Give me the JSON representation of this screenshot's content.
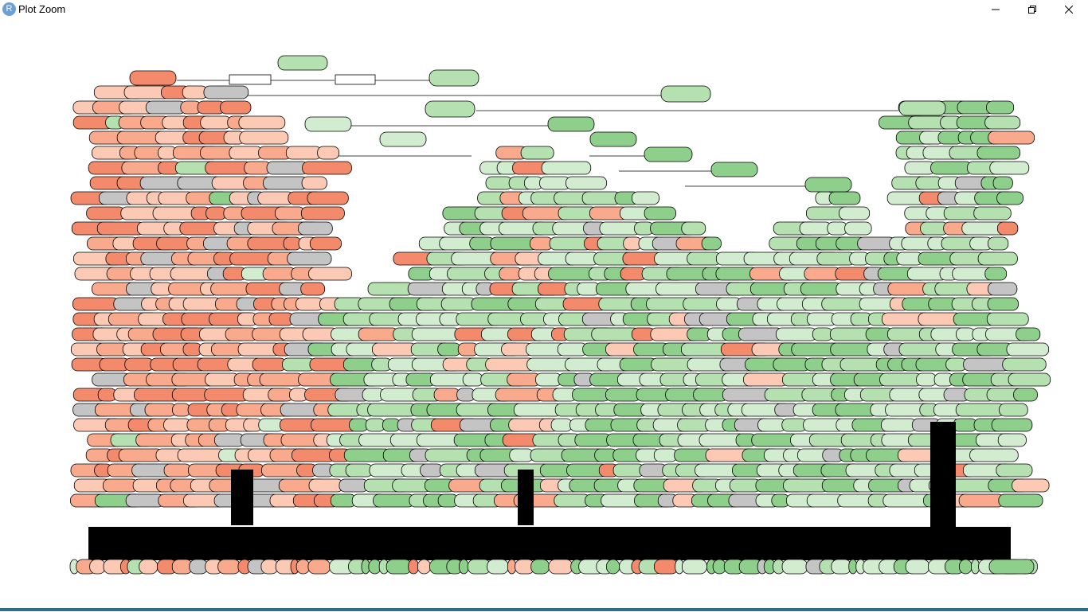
{
  "window": {
    "title": "Plot Zoom",
    "app_icon_letter": "R",
    "minimize_icon": "minimize-icon",
    "maximize_icon": "restore-icon",
    "close_icon": "close-icon"
  },
  "plot": {
    "kind": "decision-tree",
    "palette": {
      "negative_strong": "#f48a6c",
      "negative_mid": "#f9a98c",
      "negative_light": "#fccab4",
      "neutral": "#c4c4c4",
      "positive_light": "#d2ecd0",
      "positive_mid": "#b5e0b0",
      "positive_strong": "#8ecf8b",
      "edge": "#000000",
      "split_label_bg": "#ffffff"
    }
  }
}
